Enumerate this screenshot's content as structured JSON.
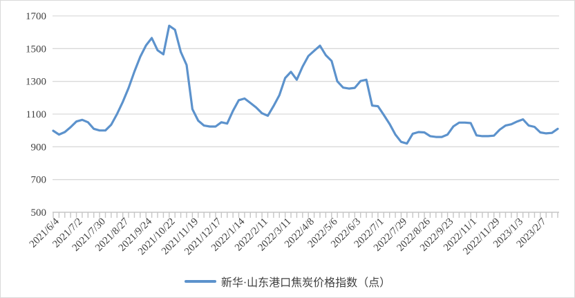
{
  "chart_data": {
    "type": "line",
    "title": "",
    "xlabel": "",
    "ylabel": "",
    "ylim": [
      500,
      1700
    ],
    "yticks": [
      500,
      700,
      900,
      1100,
      1300,
      1500,
      1700
    ],
    "grid": "horizontal",
    "legend_position": "bottom",
    "x_tick_labels": [
      "2021/6/4",
      "2021/7/2",
      "2021/7/30",
      "2021/8/27",
      "2021/9/24",
      "2021/10/22",
      "2021/11/19",
      "2021/12/17",
      "2022/1/14",
      "2022/2/11",
      "2022/3/11",
      "2022/4/8",
      "2022/5/6",
      "2022/6/3",
      "2022/7/1",
      "2022/7/29",
      "2022/8/26",
      "2022/9/23",
      "2022/11/1",
      "2022/11/29",
      "2023/1/3",
      "2023/2/7"
    ],
    "label_every": 4,
    "series": [
      {
        "name": "新华·山东港口焦炭价格指数（点）",
        "color": "#5C92CC",
        "values": [
          998,
          975,
          990,
          1020,
          1055,
          1065,
          1050,
          1010,
          1000,
          1000,
          1035,
          1100,
          1175,
          1260,
          1360,
          1450,
          1520,
          1565,
          1490,
          1465,
          1640,
          1615,
          1480,
          1400,
          1130,
          1060,
          1030,
          1024,
          1024,
          1050,
          1042,
          1120,
          1185,
          1195,
          1168,
          1140,
          1105,
          1090,
          1150,
          1215,
          1320,
          1358,
          1310,
          1390,
          1455,
          1487,
          1518,
          1460,
          1425,
          1300,
          1262,
          1256,
          1260,
          1302,
          1310,
          1152,
          1148,
          1095,
          1040,
          975,
          930,
          920,
          980,
          990,
          988,
          965,
          960,
          960,
          975,
          1025,
          1048,
          1048,
          1045,
          970,
          965,
          965,
          968,
          1005,
          1030,
          1038,
          1055,
          1068,
          1030,
          1022,
          988,
          982,
          985,
          1010
        ]
      }
    ]
  },
  "legend": {
    "label": "新华·山东港口焦炭价格指数（点）"
  },
  "colors": {
    "line": "#5C92CC",
    "gridline": "#D9D9D9",
    "axis": "#BFBFBF",
    "tick": "#C6C6C6",
    "label_text": "#404040",
    "border": "#D9D9D9"
  }
}
